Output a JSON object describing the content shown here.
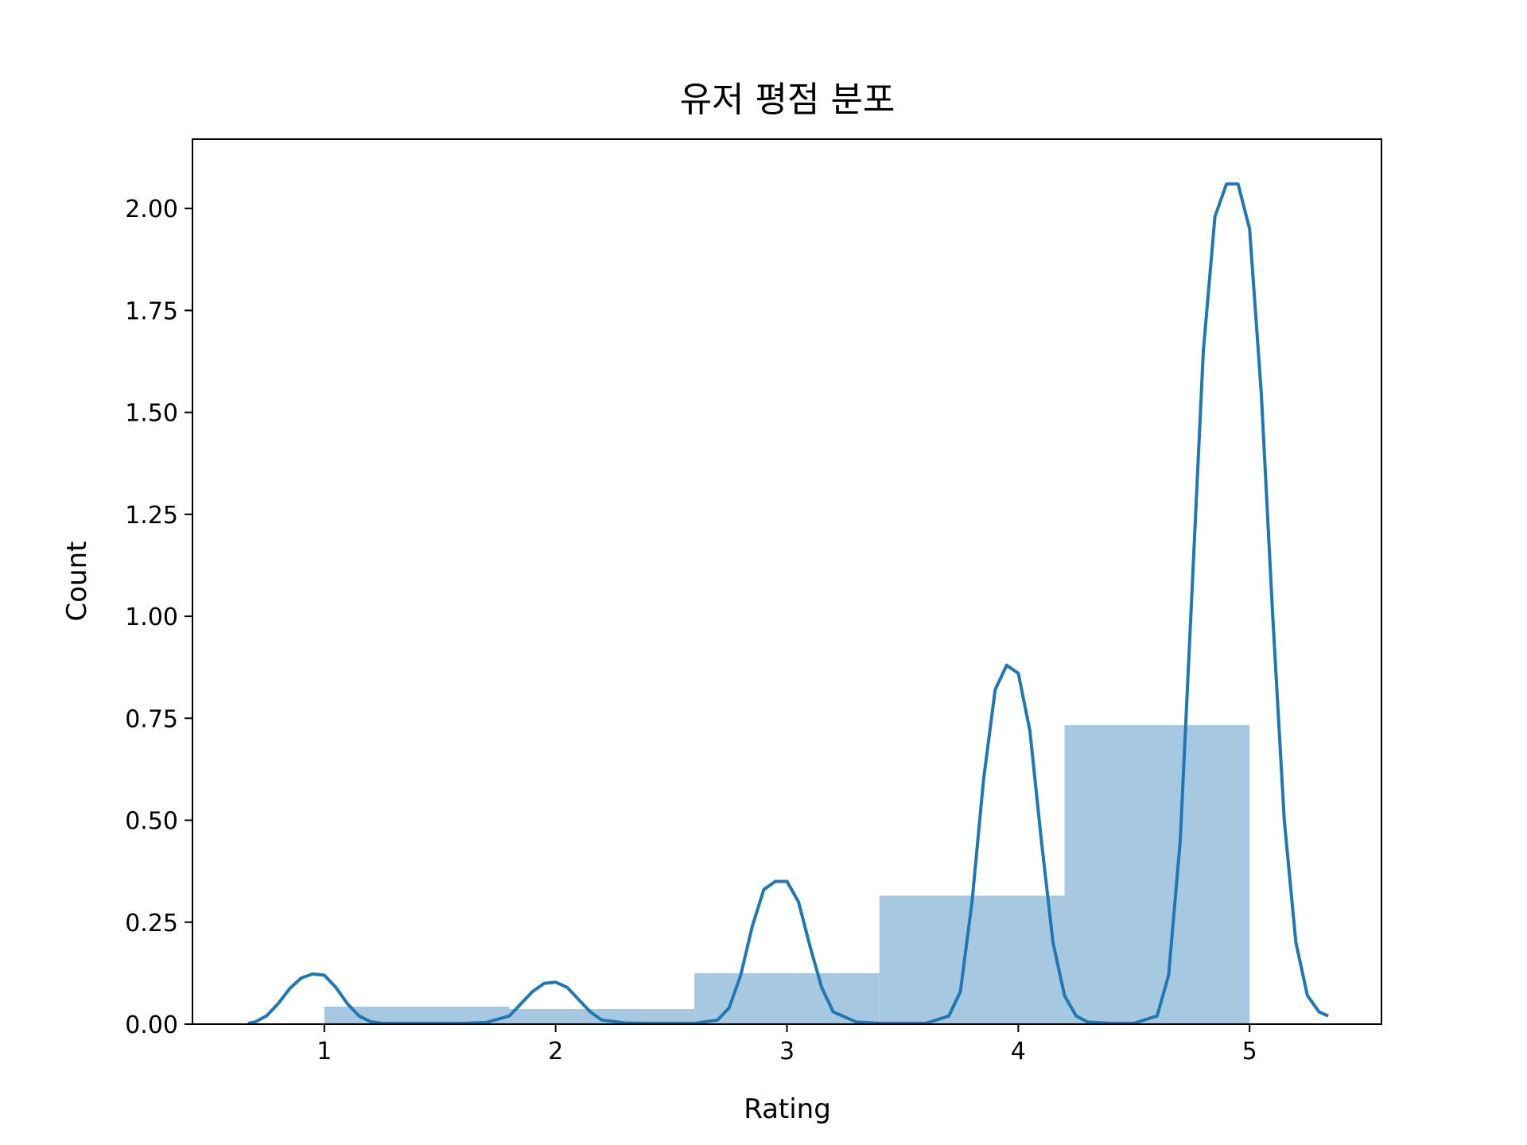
{
  "chart_data": {
    "type": "bar",
    "title": "유저 평점 분포",
    "xlabel": "Rating",
    "ylabel": "Count",
    "xlim": [
      0.43,
      5.57
    ],
    "ylim": [
      0,
      2.17
    ],
    "xticks": [
      1,
      2,
      3,
      4,
      5
    ],
    "xtick_labels": [
      "1",
      "2",
      "3",
      "4",
      "5"
    ],
    "yticks": [
      0,
      0.25,
      0.5,
      0.75,
      1.0,
      1.25,
      1.5,
      1.75,
      2.0
    ],
    "ytick_labels": [
      "0.00",
      "0.25",
      "0.50",
      "0.75",
      "1.00",
      "1.25",
      "1.50",
      "1.75",
      "2.00"
    ],
    "grid": false,
    "histogram": {
      "bin_edges": [
        1.0,
        1.8,
        2.6,
        3.4,
        4.2,
        5.0
      ],
      "values": [
        0.043,
        0.037,
        0.125,
        0.315,
        0.733
      ],
      "color": "#a7c8e1"
    },
    "kde": {
      "color": "#1f77b4",
      "x": [
        0.67,
        0.7,
        0.75,
        0.8,
        0.85,
        0.9,
        0.95,
        1.0,
        1.05,
        1.1,
        1.15,
        1.2,
        1.25,
        1.3,
        1.4,
        1.5,
        1.6,
        1.7,
        1.8,
        1.85,
        1.9,
        1.95,
        2.0,
        2.05,
        2.1,
        2.15,
        2.2,
        2.3,
        2.4,
        2.5,
        2.6,
        2.7,
        2.75,
        2.8,
        2.85,
        2.9,
        2.95,
        3.0,
        3.05,
        3.1,
        3.15,
        3.2,
        3.3,
        3.4,
        3.5,
        3.6,
        3.7,
        3.75,
        3.8,
        3.85,
        3.9,
        3.95,
        4.0,
        4.05,
        4.1,
        4.15,
        4.2,
        4.25,
        4.3,
        4.4,
        4.5,
        4.6,
        4.65,
        4.7,
        4.75,
        4.8,
        4.85,
        4.9,
        4.95,
        5.0,
        5.05,
        5.1,
        5.15,
        5.2,
        5.25,
        5.3,
        5.34
      ],
      "y": [
        0.002,
        0.005,
        0.02,
        0.05,
        0.087,
        0.113,
        0.123,
        0.12,
        0.09,
        0.05,
        0.02,
        0.006,
        0.002,
        0.002,
        0.002,
        0.002,
        0.002,
        0.004,
        0.02,
        0.05,
        0.08,
        0.1,
        0.103,
        0.09,
        0.06,
        0.03,
        0.01,
        0.003,
        0.002,
        0.002,
        0.002,
        0.01,
        0.04,
        0.12,
        0.24,
        0.33,
        0.35,
        0.35,
        0.3,
        0.19,
        0.09,
        0.03,
        0.005,
        0.002,
        0.002,
        0.002,
        0.02,
        0.08,
        0.3,
        0.6,
        0.82,
        0.88,
        0.86,
        0.72,
        0.45,
        0.2,
        0.07,
        0.02,
        0.005,
        0.002,
        0.002,
        0.02,
        0.12,
        0.45,
        1.05,
        1.65,
        1.98,
        2.06,
        2.06,
        1.95,
        1.55,
        1.0,
        0.5,
        0.2,
        0.07,
        0.03,
        0.02
      ]
    }
  }
}
